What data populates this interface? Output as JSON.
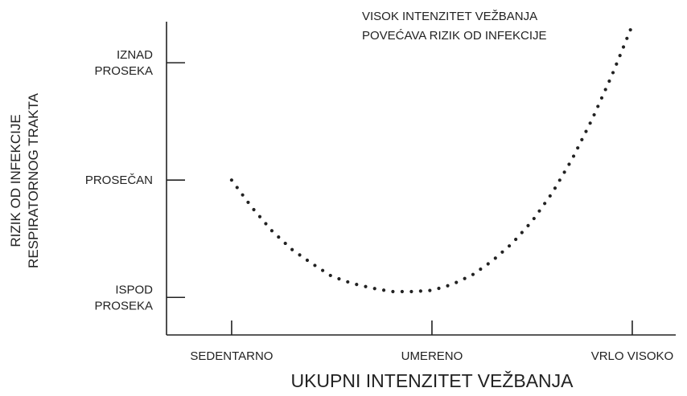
{
  "chart_data": {
    "type": "line",
    "annotation": [
      "VISOK INTENZITET VEŽBANJA",
      "POVEĆAVA RIZIK OD INFEKCIJE"
    ],
    "xlabel": "UKUPNI INTENZITET VEŽBANJA",
    "ylabel": [
      "RIZIK OD INFEKCIJE",
      "RESPIRATORNOG TRAKTA"
    ],
    "xlim": [
      -0.325,
      2.217
    ],
    "ylim": [
      -0.32,
      2.35
    ],
    "xticks": [
      {
        "value": 0,
        "label": "SEDENTARNO"
      },
      {
        "value": 1,
        "label": "UMERENO"
      },
      {
        "value": 2,
        "label": "VRLO VISOKO"
      }
    ],
    "yticks": [
      {
        "value": 0,
        "label": "ISPOD PROSEKA"
      },
      {
        "value": 1,
        "label": "PROSEČAN"
      },
      {
        "value": 2,
        "label": "IZNAD PROSEKA"
      }
    ],
    "x": [
      0,
      0.1,
      0.2,
      0.3,
      0.4,
      0.5,
      0.6,
      0.7,
      0.8,
      0.9,
      1.0,
      1.1,
      1.2,
      1.3,
      1.4,
      1.5,
      1.6,
      1.7,
      1.8,
      1.9,
      2.0
    ],
    "series": [
      {
        "color": "#222222",
        "values": [
          1.0,
          0.77,
          0.57,
          0.41,
          0.29,
          0.18,
          0.12,
          0.08,
          0.05,
          0.05,
          0.06,
          0.11,
          0.19,
          0.31,
          0.46,
          0.65,
          0.89,
          1.18,
          1.52,
          1.9,
          2.32
        ]
      }
    ]
  }
}
